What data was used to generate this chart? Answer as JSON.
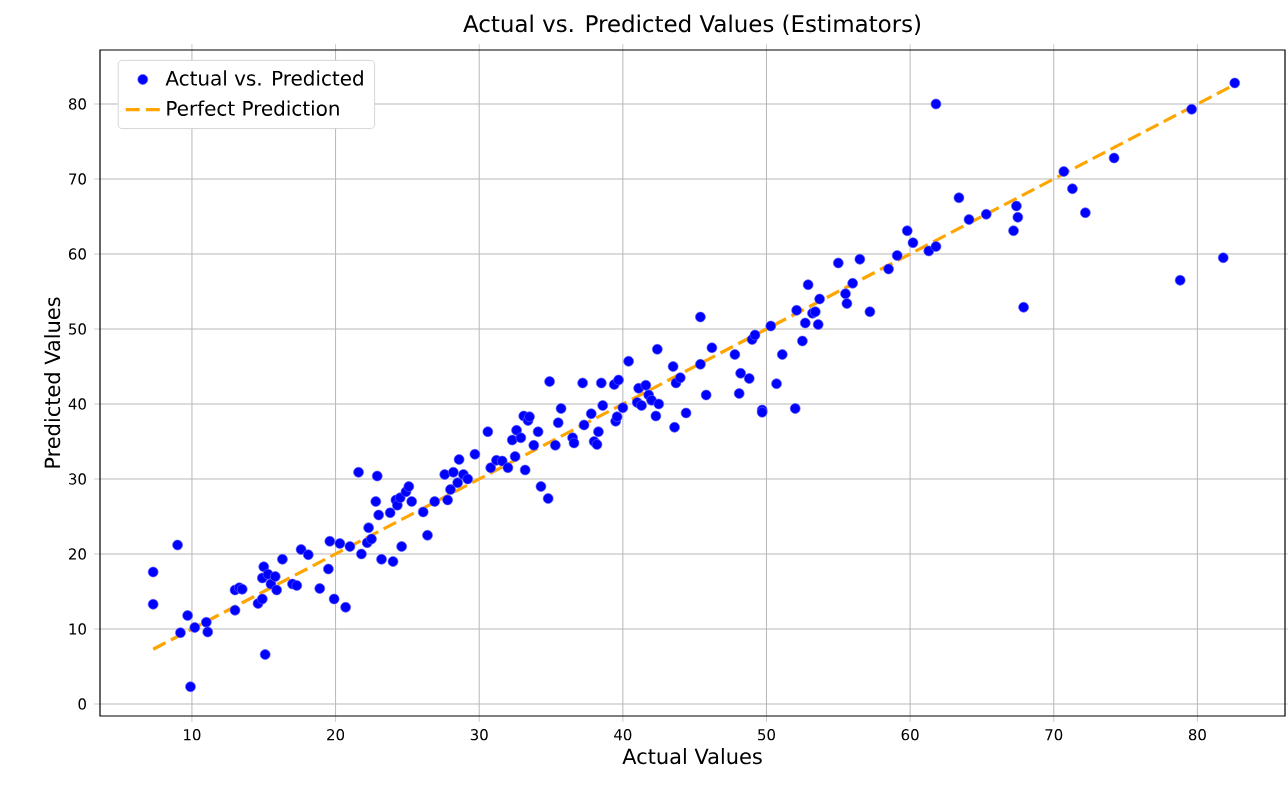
{
  "chart_data": {
    "type": "scatter",
    "title": "Actual vs. Predicted Values (Estimators)",
    "xlabel": "Actual Values",
    "ylabel": "Predicted Values",
    "xlim": [
      3.6,
      86.1
    ],
    "ylim": [
      -1.6,
      87.2
    ],
    "xticks": [
      10,
      20,
      30,
      40,
      50,
      60,
      70,
      80
    ],
    "yticks": [
      0,
      10,
      20,
      30,
      40,
      50,
      60,
      70,
      80
    ],
    "grid": true,
    "legend": "top left",
    "series": [
      {
        "name": "Actual vs. Predicted",
        "color": "#0000ff",
        "x": [
          7.3,
          7.3,
          9.0,
          9.2,
          9.7,
          9.9,
          10.2,
          11.0,
          11.1,
          13.0,
          13.0,
          13.3,
          13.5,
          14.6,
          14.9,
          14.9,
          15.0,
          15.1,
          15.3,
          15.5,
          15.8,
          15.9,
          16.3,
          17.0,
          17.3,
          17.6,
          18.1,
          18.9,
          19.5,
          19.6,
          19.9,
          20.3,
          20.7,
          21.0,
          21.6,
          21.8,
          22.2,
          22.3,
          22.5,
          22.8,
          22.9,
          23.0,
          23.2,
          23.8,
          24.0,
          24.2,
          24.3,
          24.5,
          24.6,
          24.9,
          25.1,
          25.3,
          26.1,
          26.4,
          26.9,
          27.6,
          27.8,
          28.0,
          28.2,
          28.5,
          28.6,
          28.9,
          29.2,
          29.7,
          30.6,
          30.8,
          31.2,
          31.6,
          32.0,
          32.3,
          32.5,
          32.6,
          32.9,
          33.1,
          33.2,
          33.4,
          33.5,
          33.8,
          34.1,
          34.3,
          34.8,
          34.9,
          35.3,
          35.5,
          35.7,
          36.5,
          36.6,
          37.2,
          37.3,
          37.8,
          38.0,
          38.2,
          38.3,
          38.5,
          38.6,
          39.4,
          39.5,
          39.6,
          39.7,
          40.0,
          40.4,
          41.0,
          41.1,
          41.3,
          41.6,
          41.8,
          42.0,
          42.3,
          42.4,
          42.5,
          43.5,
          43.6,
          43.7,
          44.0,
          44.4,
          45.4,
          45.4,
          45.8,
          46.2,
          47.8,
          48.1,
          48.2,
          48.8,
          49.0,
          49.2,
          49.7,
          49.7,
          50.3,
          50.7,
          51.1,
          52.1,
          52.0,
          52.5,
          52.7,
          52.9,
          53.2,
          53.4,
          53.6,
          53.7,
          55.0,
          55.5,
          55.6,
          56.0,
          56.5,
          57.2,
          58.5,
          59.1,
          59.8,
          60.2,
          61.3,
          61.8,
          61.8,
          63.4,
          64.1,
          65.3,
          67.2,
          67.4,
          67.5,
          67.9,
          70.7,
          71.3,
          72.2,
          74.2,
          78.8,
          79.6,
          81.8,
          82.6
        ],
        "values": [
          17.6,
          13.3,
          21.2,
          9.5,
          11.8,
          2.3,
          10.2,
          10.9,
          9.6,
          15.2,
          12.5,
          15.5,
          15.3,
          13.4,
          14.0,
          16.8,
          18.3,
          6.6,
          17.3,
          16.0,
          17.0,
          15.2,
          19.3,
          16.0,
          15.8,
          20.6,
          19.9,
          15.4,
          18.0,
          21.7,
          14.0,
          21.4,
          12.9,
          21.0,
          30.9,
          20.0,
          21.5,
          23.5,
          22.0,
          27.0,
          30.4,
          25.2,
          19.3,
          25.5,
          19.0,
          27.2,
          26.5,
          27.5,
          21.0,
          28.3,
          29.0,
          27.0,
          25.6,
          22.5,
          27.0,
          30.6,
          27.2,
          28.6,
          30.9,
          29.5,
          32.6,
          30.6,
          30.0,
          33.3,
          36.3,
          31.5,
          32.5,
          32.4,
          31.5,
          35.2,
          33.0,
          36.5,
          35.5,
          38.4,
          31.2,
          37.8,
          38.3,
          34.5,
          36.3,
          29.0,
          27.4,
          43.0,
          34.5,
          37.5,
          39.4,
          35.5,
          34.8,
          42.8,
          37.2,
          38.7,
          35.0,
          34.6,
          36.3,
          42.8,
          39.8,
          42.6,
          37.7,
          38.3,
          43.2,
          39.5,
          45.7,
          40.2,
          42.1,
          39.8,
          42.5,
          41.2,
          40.5,
          38.4,
          47.3,
          40.0,
          45.0,
          36.9,
          42.8,
          43.5,
          38.8,
          51.6,
          45.3,
          41.2,
          47.5,
          46.6,
          41.4,
          44.1,
          43.4,
          48.6,
          49.2,
          39.2,
          38.9,
          50.4,
          42.7,
          46.6,
          52.5,
          39.4,
          48.4,
          50.8,
          55.9,
          52.1,
          52.3,
          50.6,
          54.0,
          58.8,
          54.7,
          53.4,
          56.1,
          59.3,
          52.3,
          58.0,
          59.8,
          63.1,
          61.5,
          60.4,
          61.0,
          80.0,
          67.5,
          64.6,
          65.3,
          63.1,
          66.4,
          64.9,
          52.9,
          71.0,
          68.7,
          65.5,
          72.8,
          56.5,
          79.3,
          59.5,
          82.8
        ]
      },
      {
        "name": "Perfect Prediction",
        "type": "line",
        "line_style": "dashed",
        "color": "#ffa500",
        "x": [
          7.3,
          82.6
        ],
        "values": [
          7.3,
          82.6
        ]
      }
    ]
  }
}
